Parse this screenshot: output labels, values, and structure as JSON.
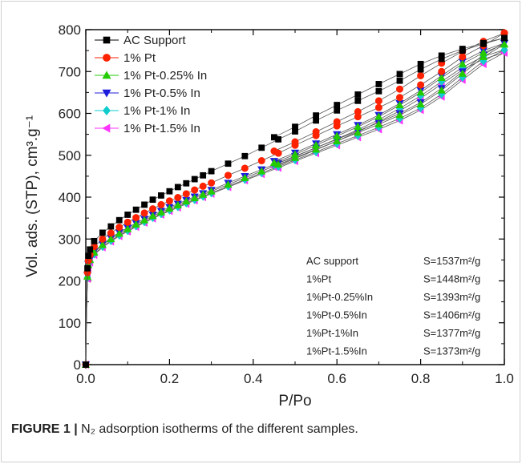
{
  "chart_data": {
    "type": "scatter",
    "xlabel": "P/Po",
    "ylabel": "Vol. ads. (STP), cm³.g⁻¹",
    "xlim": [
      0.0,
      1.0
    ],
    "ylim": [
      0,
      800
    ],
    "x_ticks": [
      "0.0",
      "0.2",
      "0.4",
      "0.6",
      "0.8",
      "1.0"
    ],
    "y_ticks": [
      "0",
      "100",
      "200",
      "300",
      "400",
      "500",
      "600",
      "700",
      "800"
    ],
    "legend_position": "top-left",
    "grid": false,
    "series": [
      {
        "name": "AC Support",
        "color": "#000000",
        "marker": "square",
        "adsorption": [
          [
            0.0,
            0
          ],
          [
            0.002,
            150
          ],
          [
            0.004,
            230
          ],
          [
            0.006,
            260
          ],
          [
            0.01,
            275
          ],
          [
            0.02,
            295
          ],
          [
            0.04,
            315
          ],
          [
            0.06,
            330
          ],
          [
            0.08,
            345
          ],
          [
            0.1,
            358
          ],
          [
            0.12,
            370
          ],
          [
            0.14,
            382
          ],
          [
            0.16,
            394
          ],
          [
            0.18,
            404
          ],
          [
            0.2,
            414
          ],
          [
            0.22,
            424
          ],
          [
            0.24,
            433
          ],
          [
            0.26,
            443
          ],
          [
            0.28,
            452
          ],
          [
            0.3,
            462
          ],
          [
            0.34,
            480
          ],
          [
            0.38,
            498
          ],
          [
            0.42,
            518
          ],
          [
            0.46,
            538
          ],
          [
            0.5,
            557
          ],
          [
            0.55,
            583
          ],
          [
            0.6,
            607
          ],
          [
            0.65,
            630
          ],
          [
            0.7,
            653
          ],
          [
            0.75,
            678
          ],
          [
            0.8,
            705
          ],
          [
            0.85,
            730
          ],
          [
            0.9,
            750
          ],
          [
            0.95,
            766
          ],
          [
            1.0,
            780
          ]
        ],
        "desorption": [
          [
            1.0,
            780
          ],
          [
            0.95,
            768
          ],
          [
            0.9,
            754
          ],
          [
            0.85,
            738
          ],
          [
            0.8,
            718
          ],
          [
            0.75,
            694
          ],
          [
            0.7,
            670
          ],
          [
            0.65,
            645
          ],
          [
            0.6,
            620
          ],
          [
            0.55,
            595
          ],
          [
            0.5,
            568
          ],
          [
            0.45,
            543
          ]
        ]
      },
      {
        "name": "1% Pt",
        "color": "#ff2200",
        "marker": "circle",
        "adsorption": [
          [
            0.0,
            0
          ],
          [
            0.002,
            140
          ],
          [
            0.004,
            220
          ],
          [
            0.006,
            248
          ],
          [
            0.01,
            262
          ],
          [
            0.02,
            282
          ],
          [
            0.04,
            300
          ],
          [
            0.06,
            314
          ],
          [
            0.08,
            328
          ],
          [
            0.1,
            340
          ],
          [
            0.12,
            351
          ],
          [
            0.14,
            362
          ],
          [
            0.16,
            372
          ],
          [
            0.18,
            382
          ],
          [
            0.2,
            391
          ],
          [
            0.22,
            399
          ],
          [
            0.24,
            408
          ],
          [
            0.26,
            417
          ],
          [
            0.28,
            426
          ],
          [
            0.3,
            434
          ],
          [
            0.34,
            452
          ],
          [
            0.38,
            469
          ],
          [
            0.42,
            487
          ],
          [
            0.46,
            505
          ],
          [
            0.5,
            524
          ],
          [
            0.55,
            547
          ],
          [
            0.6,
            570
          ],
          [
            0.65,
            592
          ],
          [
            0.7,
            614
          ],
          [
            0.75,
            638
          ],
          [
            0.8,
            668
          ],
          [
            0.85,
            700
          ],
          [
            0.9,
            735
          ],
          [
            0.95,
            762
          ],
          [
            1.0,
            792
          ]
        ],
        "desorption": [
          [
            1.0,
            792
          ],
          [
            0.95,
            772
          ],
          [
            0.9,
            748
          ],
          [
            0.85,
            720
          ],
          [
            0.8,
            690
          ],
          [
            0.75,
            658
          ],
          [
            0.7,
            630
          ],
          [
            0.65,
            604
          ],
          [
            0.6,
            580
          ],
          [
            0.55,
            556
          ],
          [
            0.5,
            532
          ],
          [
            0.45,
            510
          ]
        ]
      },
      {
        "name": "1% Pt-0.25% In",
        "color": "#22cc00",
        "marker": "triangle-up",
        "adsorption": [
          [
            0.0,
            0
          ],
          [
            0.002,
            130
          ],
          [
            0.004,
            210
          ],
          [
            0.006,
            238
          ],
          [
            0.01,
            250
          ],
          [
            0.02,
            268
          ],
          [
            0.04,
            286
          ],
          [
            0.06,
            300
          ],
          [
            0.08,
            313
          ],
          [
            0.1,
            324
          ],
          [
            0.12,
            335
          ],
          [
            0.14,
            345
          ],
          [
            0.16,
            355
          ],
          [
            0.18,
            364
          ],
          [
            0.2,
            373
          ],
          [
            0.22,
            381
          ],
          [
            0.24,
            390
          ],
          [
            0.26,
            398
          ],
          [
            0.28,
            406
          ],
          [
            0.3,
            414
          ],
          [
            0.34,
            430
          ],
          [
            0.38,
            446
          ],
          [
            0.42,
            462
          ],
          [
            0.46,
            478
          ],
          [
            0.5,
            494
          ],
          [
            0.55,
            514
          ],
          [
            0.6,
            534
          ],
          [
            0.65,
            554
          ],
          [
            0.7,
            574
          ],
          [
            0.75,
            596
          ],
          [
            0.8,
            622
          ],
          [
            0.85,
            655
          ],
          [
            0.9,
            695
          ],
          [
            0.95,
            735
          ],
          [
            1.0,
            765
          ]
        ],
        "desorption": [
          [
            1.0,
            765
          ],
          [
            0.95,
            745
          ],
          [
            0.9,
            718
          ],
          [
            0.85,
            685
          ],
          [
            0.8,
            650
          ],
          [
            0.75,
            620
          ],
          [
            0.7,
            592
          ],
          [
            0.65,
            568
          ],
          [
            0.6,
            546
          ],
          [
            0.55,
            524
          ],
          [
            0.5,
            502
          ],
          [
            0.45,
            482
          ]
        ]
      },
      {
        "name": "1% Pt-0.5% In",
        "color": "#1c1cdd",
        "marker": "triangle-down",
        "adsorption": [
          [
            0.0,
            0
          ],
          [
            0.002,
            133
          ],
          [
            0.004,
            213
          ],
          [
            0.006,
            240
          ],
          [
            0.01,
            252
          ],
          [
            0.02,
            270
          ],
          [
            0.04,
            288
          ],
          [
            0.06,
            303
          ],
          [
            0.08,
            316
          ],
          [
            0.1,
            327
          ],
          [
            0.12,
            338
          ],
          [
            0.14,
            348
          ],
          [
            0.16,
            358
          ],
          [
            0.18,
            367
          ],
          [
            0.2,
            376
          ],
          [
            0.22,
            384
          ],
          [
            0.24,
            393
          ],
          [
            0.26,
            401
          ],
          [
            0.28,
            409
          ],
          [
            0.3,
            417
          ],
          [
            0.34,
            434
          ],
          [
            0.38,
            450
          ],
          [
            0.42,
            466
          ],
          [
            0.46,
            482
          ],
          [
            0.5,
            498
          ],
          [
            0.55,
            518
          ],
          [
            0.6,
            538
          ],
          [
            0.65,
            558
          ],
          [
            0.7,
            578
          ],
          [
            0.75,
            600
          ],
          [
            0.8,
            626
          ],
          [
            0.85,
            660
          ],
          [
            0.9,
            700
          ],
          [
            0.95,
            740
          ],
          [
            1.0,
            768
          ]
        ],
        "desorption": [
          [
            1.0,
            768
          ],
          [
            0.95,
            750
          ],
          [
            0.9,
            724
          ],
          [
            0.85,
            690
          ],
          [
            0.8,
            655
          ],
          [
            0.75,
            624
          ],
          [
            0.7,
            596
          ],
          [
            0.65,
            572
          ],
          [
            0.6,
            550
          ],
          [
            0.55,
            528
          ],
          [
            0.5,
            506
          ],
          [
            0.45,
            486
          ]
        ]
      },
      {
        "name": "1% Pt-1% In",
        "color": "#11cccc",
        "marker": "diamond",
        "adsorption": [
          [
            0.0,
            0
          ],
          [
            0.002,
            128
          ],
          [
            0.004,
            208
          ],
          [
            0.006,
            234
          ],
          [
            0.01,
            246
          ],
          [
            0.02,
            264
          ],
          [
            0.04,
            282
          ],
          [
            0.06,
            296
          ],
          [
            0.08,
            309
          ],
          [
            0.1,
            320
          ],
          [
            0.12,
            331
          ],
          [
            0.14,
            341
          ],
          [
            0.16,
            351
          ],
          [
            0.18,
            360
          ],
          [
            0.2,
            369
          ],
          [
            0.22,
            377
          ],
          [
            0.24,
            386
          ],
          [
            0.26,
            394
          ],
          [
            0.28,
            402
          ],
          [
            0.3,
            410
          ],
          [
            0.34,
            426
          ],
          [
            0.38,
            442
          ],
          [
            0.42,
            458
          ],
          [
            0.46,
            473
          ],
          [
            0.5,
            489
          ],
          [
            0.55,
            508
          ],
          [
            0.6,
            528
          ],
          [
            0.65,
            547
          ],
          [
            0.7,
            567
          ],
          [
            0.75,
            588
          ],
          [
            0.8,
            613
          ],
          [
            0.85,
            646
          ],
          [
            0.9,
            686
          ],
          [
            0.95,
            725
          ],
          [
            1.0,
            752
          ]
        ],
        "desorption": [
          [
            1.0,
            752
          ],
          [
            0.95,
            736
          ],
          [
            0.9,
            710
          ],
          [
            0.85,
            676
          ],
          [
            0.8,
            642
          ],
          [
            0.75,
            612
          ],
          [
            0.7,
            585
          ],
          [
            0.65,
            561
          ],
          [
            0.6,
            539
          ],
          [
            0.55,
            518
          ],
          [
            0.5,
            497
          ],
          [
            0.45,
            477
          ]
        ]
      },
      {
        "name": "1% Pt-1.5% In",
        "color": "#ff33ff",
        "marker": "triangle-left",
        "adsorption": [
          [
            0.0,
            0
          ],
          [
            0.002,
            125
          ],
          [
            0.004,
            205
          ],
          [
            0.006,
            232
          ],
          [
            0.01,
            244
          ],
          [
            0.02,
            262
          ],
          [
            0.04,
            280
          ],
          [
            0.06,
            294
          ],
          [
            0.08,
            307
          ],
          [
            0.1,
            318
          ],
          [
            0.12,
            329
          ],
          [
            0.14,
            339
          ],
          [
            0.16,
            349
          ],
          [
            0.18,
            358
          ],
          [
            0.2,
            367
          ],
          [
            0.22,
            375
          ],
          [
            0.24,
            384
          ],
          [
            0.26,
            392
          ],
          [
            0.28,
            400
          ],
          [
            0.3,
            408
          ],
          [
            0.34,
            424
          ],
          [
            0.38,
            440
          ],
          [
            0.42,
            455
          ],
          [
            0.46,
            470
          ],
          [
            0.5,
            486
          ],
          [
            0.55,
            505
          ],
          [
            0.6,
            524
          ],
          [
            0.65,
            543
          ],
          [
            0.7,
            562
          ],
          [
            0.75,
            583
          ],
          [
            0.8,
            608
          ],
          [
            0.85,
            640
          ],
          [
            0.9,
            680
          ],
          [
            0.95,
            718
          ],
          [
            1.0,
            745
          ]
        ],
        "desorption": [
          [
            1.0,
            745
          ],
          [
            0.95,
            730
          ],
          [
            0.9,
            704
          ],
          [
            0.85,
            670
          ],
          [
            0.8,
            636
          ],
          [
            0.75,
            606
          ],
          [
            0.7,
            580
          ],
          [
            0.65,
            556
          ],
          [
            0.6,
            534
          ],
          [
            0.55,
            513
          ],
          [
            0.5,
            492
          ],
          [
            0.45,
            472
          ]
        ]
      }
    ],
    "annotations": [
      {
        "sample": "AC support",
        "value": "S=1537m²/g"
      },
      {
        "sample": "1%Pt",
        "value": "S=1448m²/g"
      },
      {
        "sample": "1%Pt-0.25%In",
        "value": "S=1393m²/g"
      },
      {
        "sample": "1%Pt-0.5%In",
        "value": "S=1406m²/g"
      },
      {
        "sample": "1%Pt-1%In",
        "value": "S=1377m²/g"
      },
      {
        "sample": "1%Pt-1.5%In",
        "value": "S=1373m²/g"
      }
    ]
  },
  "caption": {
    "label": "FIGURE 1 |",
    "text": " N₂ adsorption isotherms of the different samples."
  }
}
